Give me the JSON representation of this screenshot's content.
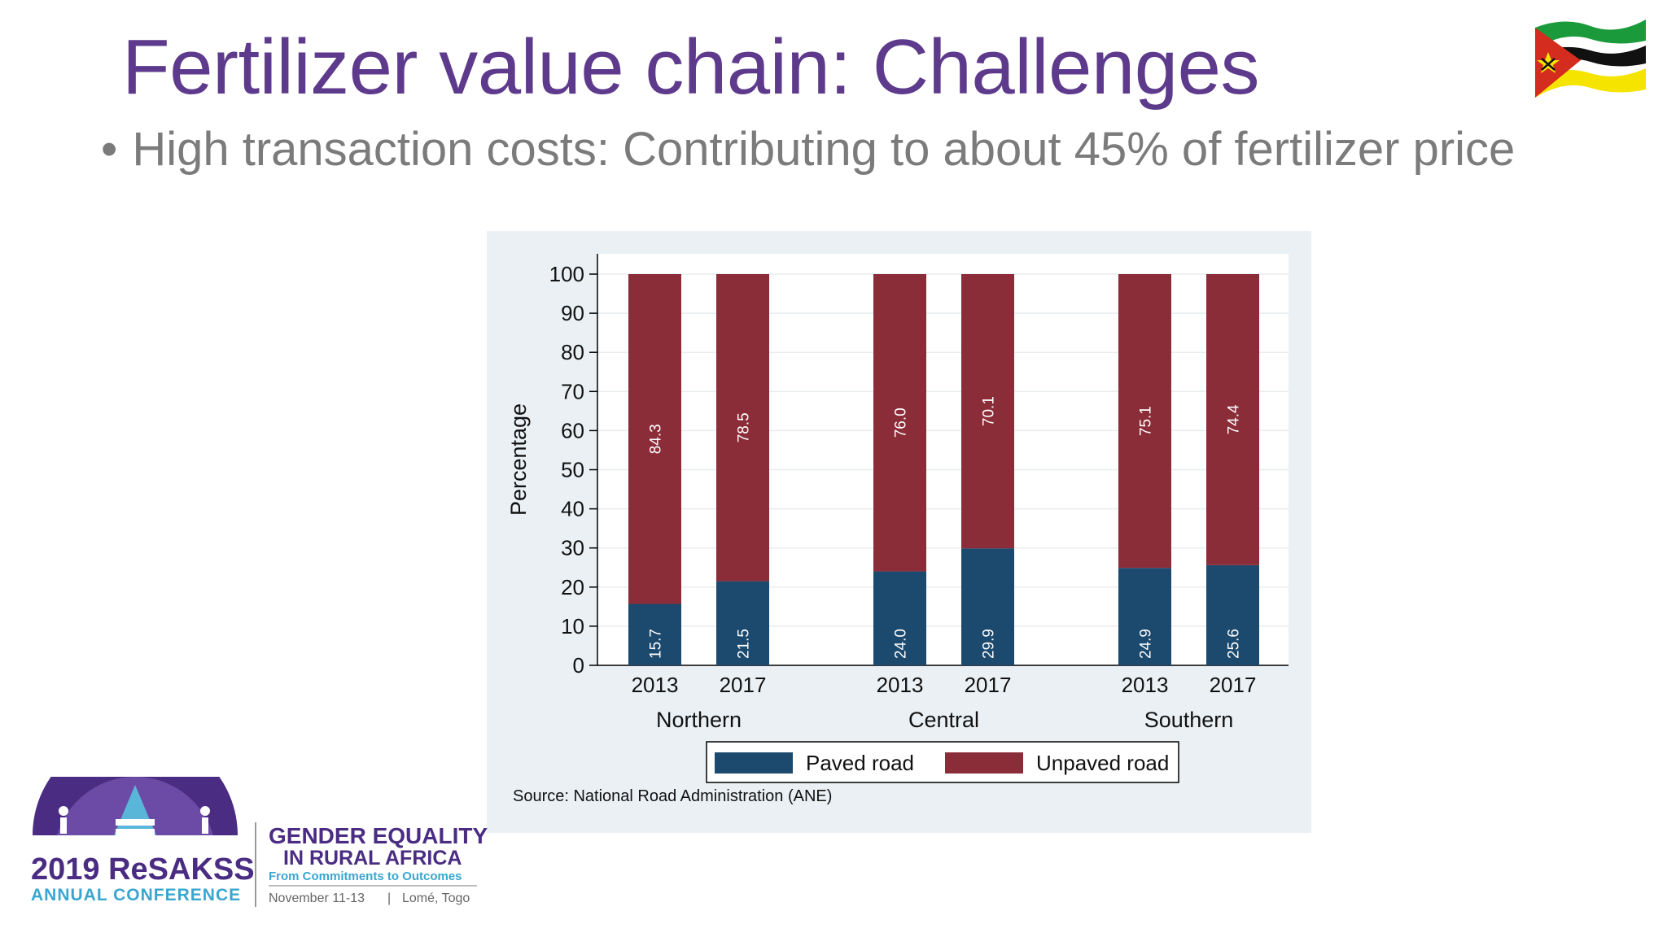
{
  "slide": {
    "title": "Fertilizer value chain: Challenges",
    "bullet_marker": "•",
    "bullet": "High transaction costs: Contributing to about 45% of fertilizer price"
  },
  "flag": {
    "icon": "mozambique-flag-icon",
    "colors": [
      "#1a9a3a",
      "#000000",
      "#f5e400",
      "#d42c1e",
      "#ffffff"
    ]
  },
  "chart_data": {
    "type": "bar",
    "stacked": true,
    "ylabel": "Percentage",
    "xlabel": "",
    "ylim": [
      0,
      100
    ],
    "yticks": [
      0,
      10,
      20,
      30,
      40,
      50,
      60,
      70,
      80,
      90,
      100
    ],
    "grid": true,
    "groups": [
      {
        "name": "Northern",
        "categories": [
          "2013",
          "2017"
        ]
      },
      {
        "name": "Central",
        "categories": [
          "2013",
          "2017"
        ]
      },
      {
        "name": "Southern",
        "categories": [
          "2013",
          "2017"
        ]
      }
    ],
    "series": [
      {
        "name": "Paved road",
        "color": "#1c4a6e",
        "values": [
          15.7,
          21.5,
          24.0,
          29.9,
          24.9,
          25.6
        ],
        "labels": [
          "15.7",
          "21.5",
          "24.0",
          "29.9",
          "24.9",
          "25.6"
        ]
      },
      {
        "name": "Unpaved road",
        "color": "#8b2d38",
        "values": [
          84.3,
          78.5,
          76.0,
          70.1,
          75.1,
          74.4
        ],
        "labels": [
          "84.3",
          "78.5",
          "76.0",
          "70.1",
          "75.1",
          "74.4"
        ]
      }
    ],
    "legend_position": "bottom",
    "source": "Source: National Road Administration (ANE)"
  },
  "logo": {
    "year_name": "2019 ReSAKSS",
    "conference": "ANNUAL CONFERENCE",
    "theme_line1": "GENDER EQUALITY",
    "theme_line2": "IN RURAL AFRICA",
    "subtitle": "From Commitments to Outcomes",
    "dates": "November 11-13",
    "separator": "|",
    "location": "Lomé, Togo"
  }
}
